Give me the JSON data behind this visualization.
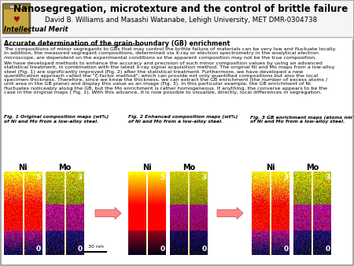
{
  "title": "Nanosegregation, microtexture and the control of brittle failure",
  "subtitle": "David B. Williams and Masashi Watanabe, Lehigh University, MET DMR-0304738",
  "section": "Intellectual Merit",
  "subsection": "Accurate determination of the grain-boundary (GB) enrichment",
  "para1_lines": [
    "The compositions of minor segregants to GBs that may control the brittle failure of materials can be very low and fluctuate locally.",
    "In addition, the measured segregant compositions, determined via X-ray or electron spectrometry in the analytical electron",
    "microscope, are dependent on the experimental conditions so the apparent composition may not be the true composition."
  ],
  "para2_lines": [
    "We have developed methods to enhance the accuracy and precision of such minor composition values by using an advanced",
    "statistical treatment, in combination with the latest X-ray signal acquisition method. The original Ni and Mo maps from a low-alloy",
    "steel (Fig. 1) are significantly improved (Fig. 2) after the statistical treatment. Furthermore, we have developed a new",
    "quantification approach called the \"ζ-factor method\", which can provide not only quantified compositions but also the local",
    "specimen thickness. Therefore, since we know the thickness, we can extract the GB enrichment (the number of excess atoms /",
    "unit area in the GB plane) and display this value as an image (Fig. 3). In this particular example, the GB enrichment of Ni",
    "fluctuates noticeably along the GB, but the Mo enrichment is rather homogeneous. If anything, the converse appears to be the",
    "case in the original maps ( Fig. 1). With this advance, it is now possible to visualize, directly, local differences in segregation."
  ],
  "fig1_line1": "Fig. 1 Original composition maps (wt%)",
  "fig1_line2": "of Ni and Mo from a low-alloy steel.",
  "fig2_line1": "Fig. 2 Enhanced composition maps (wt%)",
  "fig2_line2": "of Ni and Mo from a low-alloy steel.",
  "fig3_line1": "Fig. 3 GB enrichment maps (atoms nm⁻²)",
  "fig3_line2": "of Ni and Mo from a low-alloy steel.",
  "bg_color": "#ffffff",
  "header_bg": "#f5f5f5"
}
